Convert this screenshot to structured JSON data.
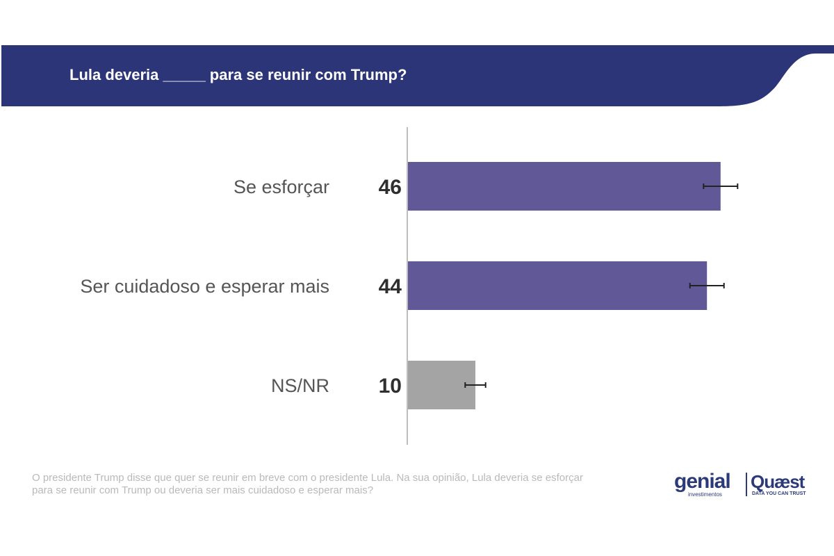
{
  "header": {
    "title": "Lula deveria _____ para se reunir com Trump?",
    "color": "#2b3578"
  },
  "chart_data": {
    "type": "bar",
    "orientation": "horizontal",
    "title": "Lula deveria _____ para se reunir com Trump?",
    "categories": [
      "Se esforçar",
      "Ser cuidadoso e esperar mais",
      "NS/NR"
    ],
    "values": [
      46,
      44,
      10
    ],
    "value_labels": [
      "46",
      "44",
      "10"
    ],
    "error_margin": [
      2.5,
      2.5,
      1.5
    ],
    "colors": [
      "#615897",
      "#615897",
      "#a4a4a4"
    ],
    "xlim": [
      0,
      60
    ],
    "grid": false,
    "legend": "none"
  },
  "footnote": "O presidente Trump disse que quer se reunir em breve com o presidente Lula. Na sua opinião, Lula deveria se esforçar para se reunir com Trump ou deveria ser mais cuidadoso e esperar mais?",
  "logos": {
    "genial": "genial",
    "genial_sub": "investimentos",
    "quaest": "Quæst",
    "quaest_sub": "DATA YOU CAN TRUST",
    "color": "#2c3a78"
  }
}
